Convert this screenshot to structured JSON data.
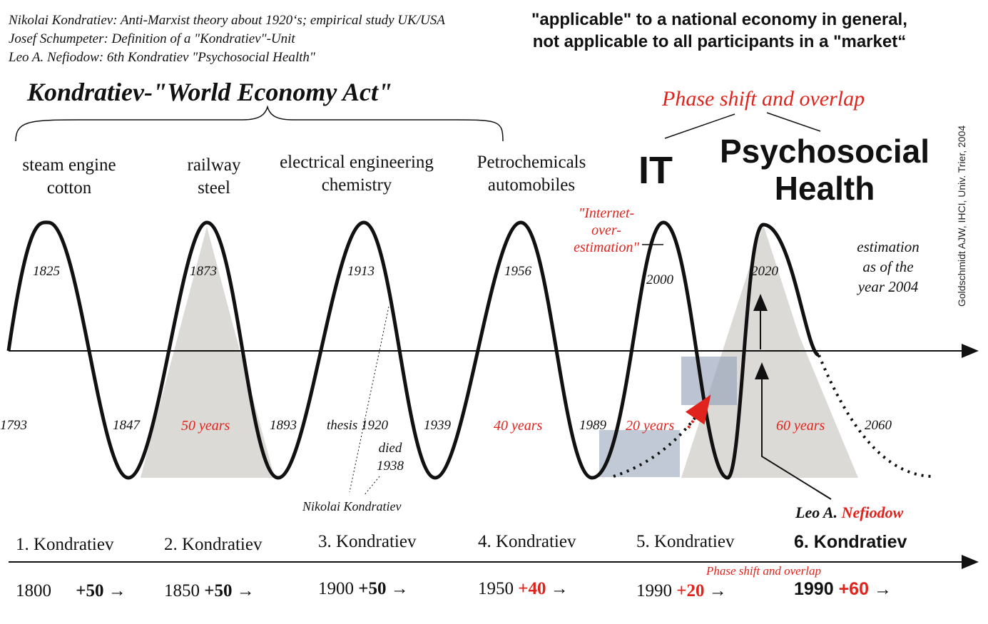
{
  "header": {
    "credits": [
      "Nikolai Kondratiev: Anti-Marxist theory about 1920‘s; empirical study UK/USA",
      "Josef Schumpeter: Definition of a \"Kondratiev\"-Unit",
      "Leo A. Nefiodow: 6th Kondratiev \"Psychosocial Health\""
    ],
    "note_line1": "\"applicable\" to a national economy in general,",
    "note_line2": "not applicable to all participants in a \"market“",
    "main_title": "Kondratiev-\"World Economy Act\"",
    "phase_shift_top": "Phase shift and overlap",
    "copyright": "Goldschmidt AJW, IHCI, Univ. Trier, 2004"
  },
  "technologies": {
    "t1_line1": "steam engine",
    "t1_line2": "cotton",
    "t2_line1": "railway",
    "t2_line2": "steel",
    "t3_line1": "electrical engineering",
    "t3_line2": "chemistry",
    "t4_line1": "Petrochemicals",
    "t4_line2": "automobiles",
    "t5": "IT",
    "t6_line1": "Psychosocial",
    "t6_line2": "Health"
  },
  "peak_years": [
    "1825",
    "1873",
    "1913",
    "1956",
    "2000",
    "2020"
  ],
  "trough_years": [
    "1793",
    "1847",
    "1893",
    "1939",
    "1989",
    "2060"
  ],
  "spans": [
    "50 years",
    "40 years",
    "20 years",
    "60 years"
  ],
  "annotations": {
    "internet_line1": "\"Internet-",
    "internet_line2": "over-",
    "internet_line3": "estimation\"",
    "estimation_line1": "estimation",
    "estimation_line2": "as of the",
    "estimation_line3": "year 2004",
    "thesis": "thesis 1920",
    "died_line1": "died",
    "died_line2": "1938",
    "nikolai": "Nikolai Kondratiev",
    "nefiodow_first": "Leo A.",
    "nefiodow_last": "Nefiodow",
    "phase_shift_bottom": "Phase shift and overlap"
  },
  "kondratievs": [
    {
      "name": "1. Kondratiev",
      "start": "1800",
      "plus": "+50"
    },
    {
      "name": "2. Kondratiev",
      "start": "1850",
      "plus": "+50"
    },
    {
      "name": "3. Kondratiev",
      "start": "1900",
      "plus": "+50"
    },
    {
      "name": "4. Kondratiev",
      "start": "1950",
      "plus": "+40"
    },
    {
      "name": "5. Kondratiev",
      "start": "1990",
      "plus": "+20"
    },
    {
      "name": "6. Kondratiev",
      "start": "1990",
      "plus": "+60"
    }
  ],
  "colors": {
    "accent_red": "#e0231c",
    "shade_gray": "#d6d3cf",
    "box_blue": "#8f9db5",
    "ink": "#111111"
  }
}
